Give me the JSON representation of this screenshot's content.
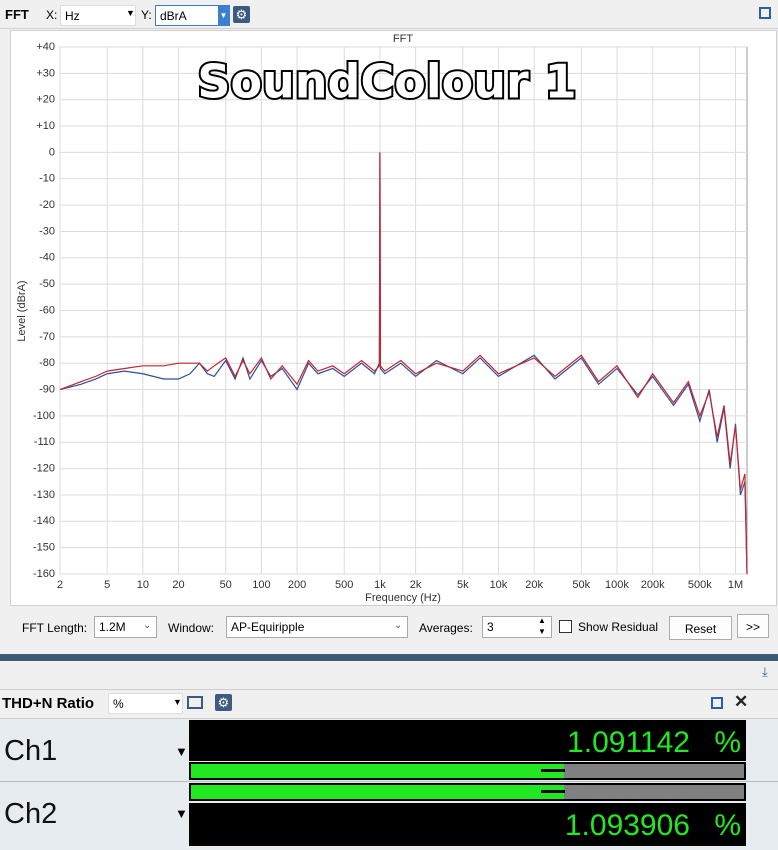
{
  "toolbar": {
    "title": "FFT",
    "x_label": "X:",
    "x_value": "Hz",
    "y_label": "Y:",
    "y_value": "dBrA"
  },
  "chart_data": {
    "type": "line",
    "title": "FFT",
    "annotation": "SoundColour 1",
    "x_label": "Frequency (Hz)",
    "y_label": "Level (dBrA)",
    "xscale": "log",
    "grid": true,
    "xlim": [
      2,
      1250000
    ],
    "ylim": [
      -160,
      40
    ],
    "xticks": [
      2,
      5,
      10,
      20,
      50,
      100,
      200,
      500,
      {
        "value": 1000,
        "label": "1k"
      },
      {
        "value": 2000,
        "label": "2k"
      },
      {
        "value": 5000,
        "label": "5k"
      },
      {
        "value": 10000,
        "label": "10k"
      },
      {
        "value": 20000,
        "label": "20k"
      },
      {
        "value": 50000,
        "label": "50k"
      },
      {
        "value": 100000,
        "label": "100k"
      },
      {
        "value": 200000,
        "label": "200k"
      },
      {
        "value": 500000,
        "label": "500k"
      },
      {
        "value": 1000000,
        "label": "1M"
      }
    ],
    "yticks": [
      {
        "value": 40,
        "label": "+40"
      },
      {
        "value": 30,
        "label": "+30"
      },
      {
        "value": 20,
        "label": "+20"
      },
      {
        "value": 10,
        "label": "+10"
      },
      0,
      -10,
      -20,
      -30,
      -40,
      -50,
      -60,
      -70,
      -80,
      -90,
      -100,
      -110,
      -120,
      -130,
      -140,
      -150,
      -160
    ],
    "x": [
      2,
      3,
      4,
      5,
      7,
      10,
      15,
      20,
      25,
      30,
      35,
      40,
      50,
      60,
      70,
      80,
      100,
      120,
      150,
      200,
      250,
      300,
      400,
      500,
      700,
      900,
      990,
      1000,
      1010,
      1100,
      1500,
      2000,
      3000,
      5000,
      7000,
      10000,
      20000,
      30000,
      50000,
      70000,
      100000,
      150000,
      200000,
      300000,
      400000,
      500000,
      600000,
      700000,
      800000,
      900000,
      1000000,
      1100000,
      1200000,
      1250000
    ],
    "series": [
      {
        "color": "#2f4f9c",
        "values": [
          -90,
          -88,
          -86,
          -84,
          -83,
          -84,
          -86,
          -86,
          -84,
          -80,
          -84,
          -85,
          -79,
          -86,
          -78,
          -86,
          -79,
          -85,
          -82,
          -90,
          -80,
          -84,
          -82,
          -85,
          -80,
          -84,
          -80,
          0,
          -82,
          -84,
          -80,
          -85,
          -79,
          -84,
          -78,
          -85,
          -77,
          -86,
          -78,
          -88,
          -82,
          -92,
          -85,
          -96,
          -88,
          -102,
          -90,
          -110,
          -97,
          -120,
          -103,
          -130,
          -125,
          -160
        ]
      },
      {
        "color": "#c4262e",
        "values": [
          -90,
          -87,
          -85,
          -83,
          -82,
          -81,
          -81,
          -80,
          -80,
          -80,
          -83,
          -81,
          -78,
          -85,
          -79,
          -84,
          -78,
          -86,
          -81,
          -88,
          -79,
          -83,
          -81,
          -84,
          -79,
          -83,
          -81,
          0,
          -81,
          -83,
          -79,
          -84,
          -80,
          -83,
          -77,
          -84,
          -78,
          -85,
          -77,
          -87,
          -81,
          -93,
          -84,
          -95,
          -87,
          -100,
          -91,
          -108,
          -96,
          -118,
          -104,
          -128,
          -122,
          -160
        ]
      }
    ]
  },
  "controls": {
    "fft_length_label": "FFT Length:",
    "fft_length": "1.2M",
    "window_label": "Window:",
    "window": "AP-Equiripple",
    "averages_label": "Averages:",
    "averages": "3",
    "residual": "Show Residual",
    "reset": "Reset",
    "more": ">>"
  },
  "meter": {
    "title": "THD+N Ratio",
    "unit": "%",
    "channels": [
      {
        "name": "Ch1",
        "value": "1.091142",
        "unit": "%"
      },
      {
        "name": "Ch2",
        "value": "1.093906",
        "unit": "%"
      }
    ]
  }
}
